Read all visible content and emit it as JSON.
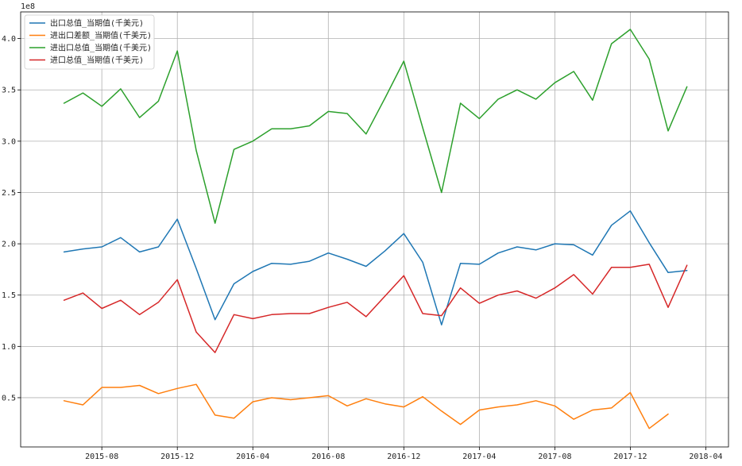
{
  "chart_data": {
    "type": "line",
    "title": "",
    "xlabel": "",
    "ylabel": "",
    "y_offset_text": "1e8",
    "grid": true,
    "legend_position": "top-left",
    "x": [
      "2015-06",
      "2015-07",
      "2015-08",
      "2015-09",
      "2015-10",
      "2015-11",
      "2015-12",
      "2016-01",
      "2016-02",
      "2016-03",
      "2016-04",
      "2016-05",
      "2016-06",
      "2016-07",
      "2016-08",
      "2016-09",
      "2016-10",
      "2016-11",
      "2016-12",
      "2017-01",
      "2017-02",
      "2017-03",
      "2017-04",
      "2017-05",
      "2017-06",
      "2017-07",
      "2017-08",
      "2017-09",
      "2017-10",
      "2017-11",
      "2017-12",
      "2018-01",
      "2018-02",
      "2018-03"
    ],
    "x_ticks": [
      "2015-08",
      "2015-12",
      "2016-04",
      "2016-08",
      "2016-12",
      "2017-04",
      "2017-08",
      "2017-12",
      "2018-04"
    ],
    "y_ticks": [
      "0.5",
      "1.0",
      "1.5",
      "2.0",
      "2.5",
      "3.0",
      "3.5",
      "4.0"
    ],
    "ylim": [
      0.02,
      4.26
    ],
    "series": [
      {
        "name": "出口总值_当期值(千美元)",
        "color": "#1f77b4",
        "values": [
          1.92,
          1.95,
          1.97,
          2.06,
          1.92,
          1.97,
          2.24,
          1.76,
          1.26,
          1.61,
          1.73,
          1.81,
          1.8,
          1.83,
          1.91,
          1.85,
          1.78,
          1.93,
          2.1,
          1.82,
          1.21,
          1.81,
          1.8,
          1.91,
          1.97,
          1.94,
          2.0,
          1.99,
          1.89,
          2.18,
          2.32,
          2.01,
          1.72,
          1.74
        ]
      },
      {
        "name": "进出口差额_当期值(千美元)",
        "color": "#ff7f0e",
        "values": [
          0.47,
          0.43,
          0.6,
          0.6,
          0.62,
          0.54,
          0.59,
          0.63,
          0.33,
          0.3,
          0.46,
          0.5,
          0.48,
          0.5,
          0.52,
          0.42,
          0.49,
          0.44,
          0.41,
          0.51,
          0.37,
          0.24,
          0.38,
          0.41,
          0.43,
          0.47,
          0.42,
          0.29,
          0.38,
          0.4,
          0.55,
          0.2,
          0.34,
          null
        ]
      },
      {
        "name": "进出口总值_当期值(千美元)",
        "color": "#2ca02c",
        "values": [
          3.37,
          3.47,
          3.34,
          3.51,
          3.23,
          3.39,
          3.88,
          2.91,
          2.2,
          2.92,
          3.0,
          3.12,
          3.12,
          3.15,
          3.29,
          3.27,
          3.07,
          3.42,
          3.78,
          3.13,
          2.5,
          3.37,
          3.22,
          3.41,
          3.5,
          3.41,
          3.57,
          3.68,
          3.4,
          3.95,
          4.09,
          3.8,
          3.1,
          3.53
        ]
      },
      {
        "name": "进口总值_当期值(千美元)",
        "color": "#d62728",
        "values": [
          1.45,
          1.52,
          1.37,
          1.45,
          1.31,
          1.43,
          1.65,
          1.14,
          0.94,
          1.31,
          1.27,
          1.31,
          1.32,
          1.32,
          1.38,
          1.43,
          1.29,
          1.49,
          1.69,
          1.32,
          1.3,
          1.57,
          1.42,
          1.5,
          1.54,
          1.47,
          1.57,
          1.7,
          1.51,
          1.77,
          1.77,
          1.8,
          1.38,
          1.79
        ]
      }
    ]
  }
}
